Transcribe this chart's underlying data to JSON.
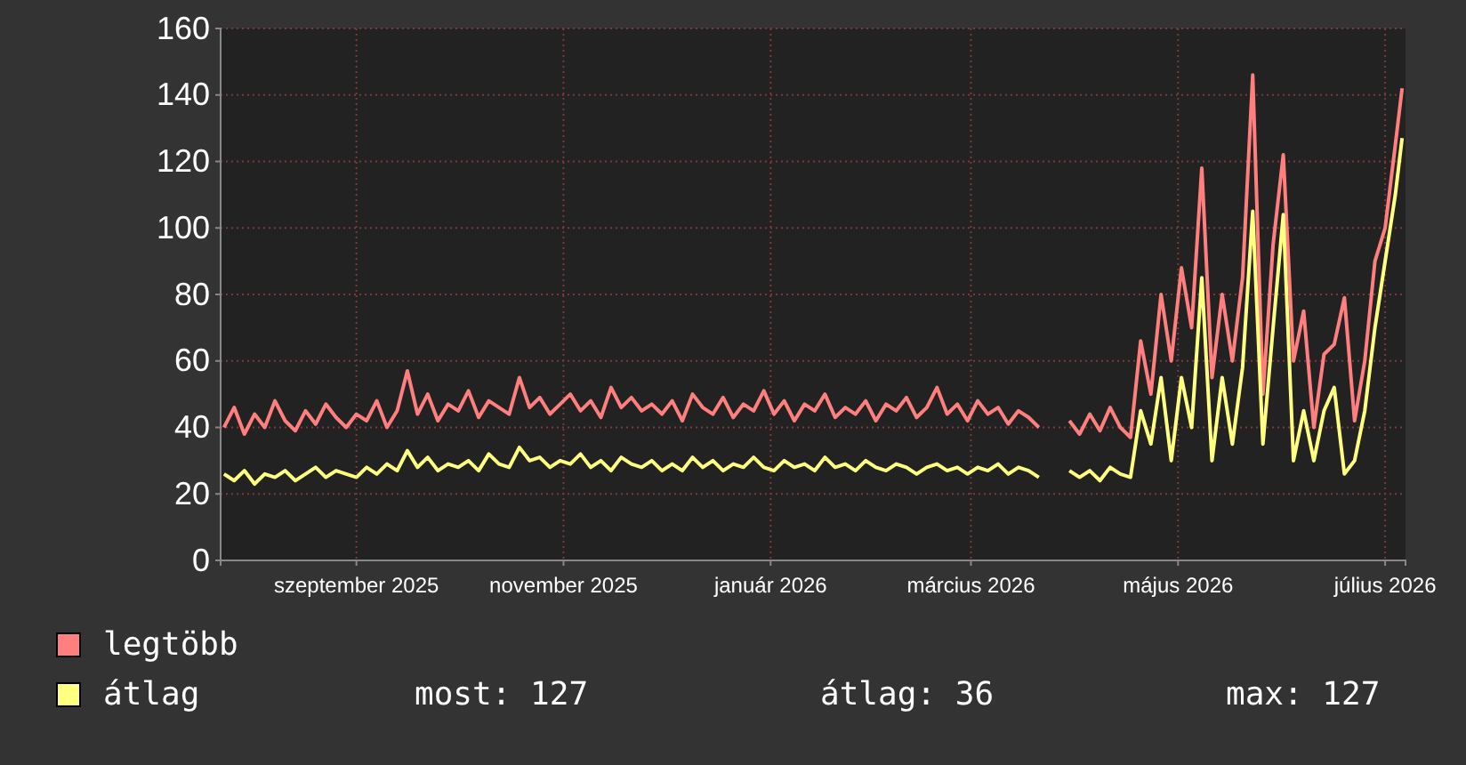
{
  "chart_data": {
    "type": "line",
    "x": [
      "2025-07-24",
      "2025-07-27",
      "2025-07-30",
      "2025-08-02",
      "2025-08-05",
      "2025-08-08",
      "2025-08-11",
      "2025-08-14",
      "2025-08-17",
      "2025-08-20",
      "2025-08-23",
      "2025-08-26",
      "2025-08-29",
      "2025-09-01",
      "2025-09-04",
      "2025-09-07",
      "2025-09-10",
      "2025-09-13",
      "2025-09-16",
      "2025-09-19",
      "2025-09-22",
      "2025-09-25",
      "2025-09-28",
      "2025-10-01",
      "2025-10-04",
      "2025-10-07",
      "2025-10-10",
      "2025-10-13",
      "2025-10-16",
      "2025-10-19",
      "2025-10-22",
      "2025-10-25",
      "2025-10-28",
      "2025-10-31",
      "2025-11-03",
      "2025-11-06",
      "2025-11-09",
      "2025-11-12",
      "2025-11-15",
      "2025-11-18",
      "2025-11-21",
      "2025-11-24",
      "2025-11-27",
      "2025-11-30",
      "2025-12-03",
      "2025-12-06",
      "2025-12-09",
      "2025-12-12",
      "2025-12-15",
      "2025-12-18",
      "2025-12-21",
      "2025-12-24",
      "2025-12-27",
      "2025-12-30",
      "2026-01-02",
      "2026-01-05",
      "2026-01-08",
      "2026-01-11",
      "2026-01-14",
      "2026-01-17",
      "2026-01-20",
      "2026-01-23",
      "2026-01-26",
      "2026-01-29",
      "2026-02-01",
      "2026-02-04",
      "2026-02-07",
      "2026-02-10",
      "2026-02-13",
      "2026-02-16",
      "2026-02-19",
      "2026-02-22",
      "2026-02-25",
      "2026-02-28",
      "2026-03-03",
      "2026-03-06",
      "2026-03-09",
      "2026-03-12",
      "2026-03-15",
      "2026-03-18",
      "2026-03-21",
      "2026-03-24",
      "2026-03-27",
      "2026-03-30",
      "2026-04-02",
      "2026-04-05",
      "2026-04-08",
      "2026-04-11",
      "2026-04-14",
      "2026-04-17",
      "2026-04-20",
      "2026-04-23",
      "2026-04-26",
      "2026-04-29",
      "2026-05-02",
      "2026-05-05",
      "2026-05-08",
      "2026-05-11",
      "2026-05-14",
      "2026-05-17",
      "2026-05-20",
      "2026-05-23",
      "2026-05-26",
      "2026-05-29",
      "2026-06-01",
      "2026-06-04",
      "2026-06-07",
      "2026-06-10",
      "2026-06-13",
      "2026-06-16",
      "2026-06-19",
      "2026-06-22",
      "2026-06-25",
      "2026-06-28",
      "2026-07-01",
      "2026-07-04",
      "2026-07-06"
    ],
    "series": [
      {
        "name": "legtöbb",
        "color": "#ff7f7f",
        "values": [
          40,
          46,
          38,
          44,
          40,
          48,
          42,
          39,
          45,
          41,
          47,
          43,
          40,
          44,
          42,
          48,
          40,
          45,
          57,
          44,
          50,
          42,
          47,
          45,
          51,
          43,
          48,
          46,
          44,
          55,
          46,
          49,
          44,
          47,
          50,
          45,
          48,
          43,
          52,
          46,
          49,
          45,
          47,
          44,
          48,
          42,
          50,
          46,
          44,
          49,
          43,
          47,
          45,
          51,
          44,
          48,
          42,
          47,
          45,
          50,
          43,
          46,
          44,
          48,
          42,
          47,
          45,
          49,
          43,
          46,
          52,
          44,
          47,
          42,
          48,
          44,
          46,
          41,
          45,
          43,
          40,
          null,
          null,
          42,
          38,
          44,
          39,
          46,
          40,
          37,
          66,
          50,
          80,
          60,
          88,
          70,
          118,
          55,
          80,
          60,
          85,
          146,
          50,
          95,
          122,
          60,
          75,
          40,
          62,
          65,
          79,
          42,
          60,
          90,
          100,
          125,
          142
        ]
      },
      {
        "name": "átlag",
        "color": "#ffff80",
        "values": [
          26,
          24,
          27,
          23,
          26,
          25,
          27,
          24,
          26,
          28,
          25,
          27,
          26,
          25,
          28,
          26,
          29,
          27,
          33,
          28,
          31,
          27,
          29,
          28,
          30,
          27,
          32,
          29,
          28,
          34,
          30,
          31,
          28,
          30,
          29,
          32,
          28,
          30,
          27,
          31,
          29,
          28,
          30,
          27,
          29,
          27,
          31,
          28,
          30,
          27,
          29,
          28,
          31,
          28,
          27,
          30,
          28,
          29,
          27,
          31,
          28,
          29,
          27,
          30,
          28,
          27,
          29,
          28,
          26,
          28,
          29,
          27,
          28,
          26,
          28,
          27,
          29,
          26,
          28,
          27,
          25,
          null,
          null,
          27,
          25,
          27,
          24,
          28,
          26,
          25,
          45,
          35,
          55,
          30,
          55,
          40,
          85,
          30,
          55,
          35,
          58,
          105,
          35,
          70,
          104,
          30,
          45,
          30,
          45,
          52,
          26,
          30,
          45,
          70,
          90,
          110,
          127
        ]
      }
    ],
    "xlim": [
      "2025-07-23",
      "2026-07-07"
    ],
    "xticks": [
      {
        "value": "2025-09-01",
        "label": "szeptember 2025"
      },
      {
        "value": "2025-11-01",
        "label": "november 2025"
      },
      {
        "value": "2026-01-01",
        "label": "január 2026"
      },
      {
        "value": "2026-03-01",
        "label": "március 2026"
      },
      {
        "value": "2026-05-01",
        "label": "május 2026"
      },
      {
        "value": "2026-07-01",
        "label": "július 2026"
      }
    ],
    "ylim": [
      0,
      160
    ],
    "yticks": [
      0,
      20,
      40,
      60,
      80,
      100,
      120,
      140,
      160
    ],
    "grid": true,
    "legend": "bottom left",
    "annotations": [
      "most: 127",
      "átlag: 36",
      "max: 127"
    ]
  }
}
